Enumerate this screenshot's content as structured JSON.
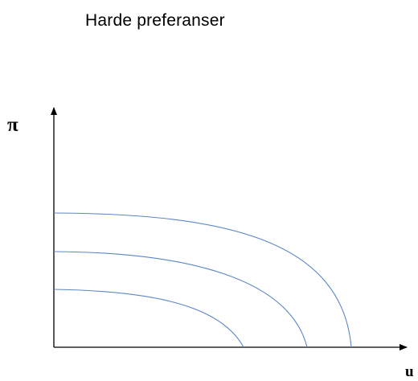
{
  "title": "Harde preferanser",
  "axes": {
    "y_label": "π",
    "x_label": "u"
  },
  "curves": {
    "count": 3,
    "stroke_color": "#5b87c8"
  },
  "colors": {
    "axis": "#000000",
    "curve": "#5b87c8"
  }
}
